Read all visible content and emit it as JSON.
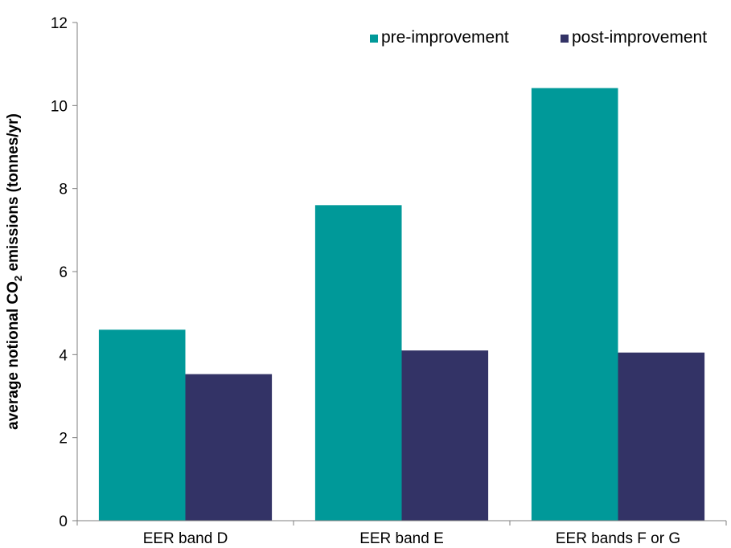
{
  "chart_data": {
    "type": "bar",
    "categories": [
      "EER band D",
      "EER band E",
      "EER bands F or G"
    ],
    "series": [
      {
        "name": "pre-improvement",
        "values": [
          4.6,
          7.6,
          10.42
        ],
        "color": "#009999"
      },
      {
        "name": "post-improvement",
        "values": [
          3.53,
          4.1,
          4.05
        ],
        "color": "#333366"
      }
    ],
    "ylabel": "average notional CO2 emissions (tonnes/yr)",
    "ylabel_parts": {
      "prefix": "average notional CO",
      "subscript": "2",
      "suffix": " emissions (tonnes/yr)"
    },
    "xlabel": "",
    "ylim": [
      0,
      12
    ],
    "yticks": [
      0,
      2,
      4,
      6,
      8,
      10,
      12
    ],
    "grid": false,
    "legend_position": "top-right"
  }
}
